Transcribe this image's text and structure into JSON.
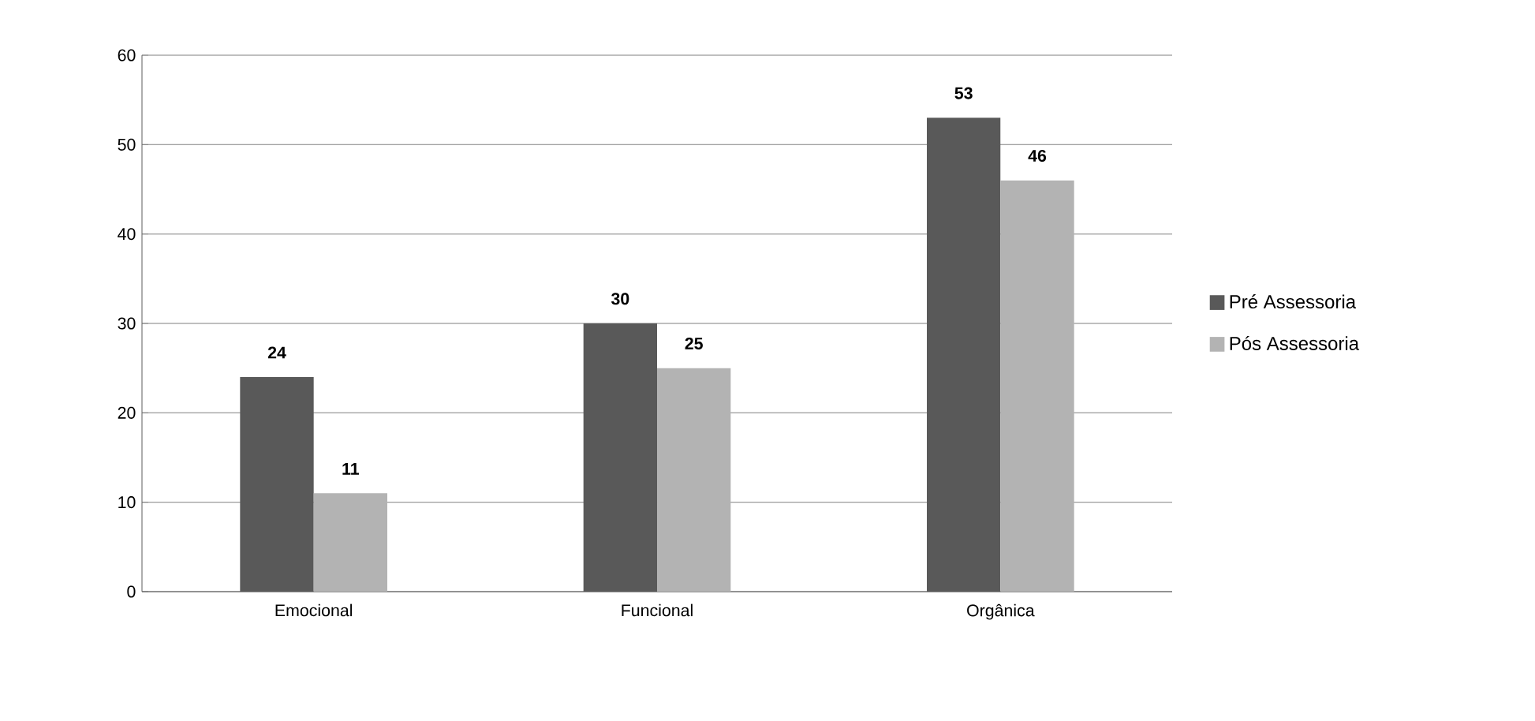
{
  "chart_data": {
    "type": "bar",
    "categories": [
      "Emocional",
      "Funcional",
      "Orgânica"
    ],
    "series": [
      {
        "name": "Pré Assessoria",
        "color": "#595959",
        "values": [
          24,
          30,
          53
        ]
      },
      {
        "name": "Pós Assessoria",
        "color": "#b3b3b3",
        "values": [
          11,
          25,
          46
        ]
      }
    ],
    "ylim": [
      0,
      60
    ],
    "yticks": [
      0,
      10,
      20,
      30,
      40,
      50,
      60
    ],
    "grid": "y",
    "legend": "right",
    "data_labels": true
  }
}
